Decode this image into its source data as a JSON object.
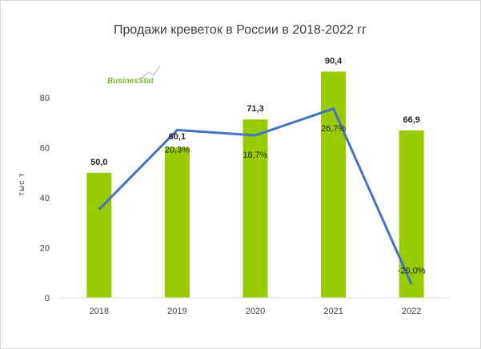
{
  "chart_data": {
    "type": "bar",
    "title": "Продажи креветок в России в 2018-2022 гг",
    "ylabel": "тыс т",
    "xlabel": "",
    "categories": [
      "2018",
      "2019",
      "2020",
      "2021",
      "2022"
    ],
    "series": [
      {
        "type": "bar",
        "values": [
          50.0,
          60.1,
          71.3,
          90.4,
          66.9
        ],
        "value_labels": [
          "50,0",
          "60,1",
          "71,3",
          "90,4",
          "66,9"
        ],
        "color": "#99cc00"
      },
      {
        "type": "line",
        "axis": "secondary",
        "values": [
          null,
          20.3,
          18.7,
          26.7,
          -26.0
        ],
        "value_labels": [
          "",
          "20,3%",
          "18,7%",
          "26,7%",
          "-26,0%"
        ],
        "color": "#4472c4"
      }
    ],
    "ylim": [
      0,
      100
    ],
    "yticks": [
      "0",
      "20",
      "40",
      "60",
      "80"
    ],
    "grid": false,
    "legend": "none"
  },
  "logo": {
    "text": "BusinesStat",
    "color": "#7db53b"
  }
}
